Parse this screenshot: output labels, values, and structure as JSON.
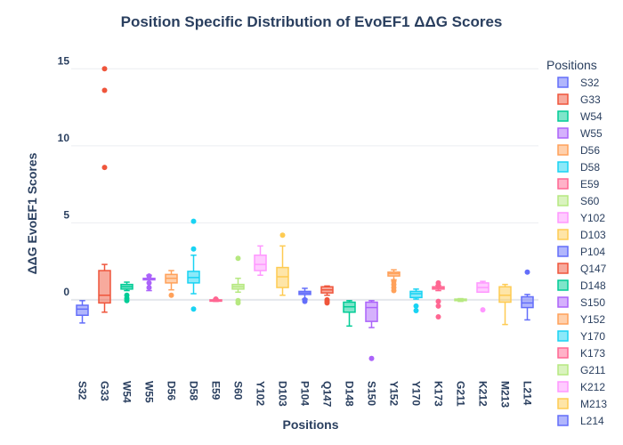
{
  "chart_data": {
    "type": "box",
    "title": "Position Specific Distribution of EvoEF1 ΔΔG Scores",
    "xlabel": "Positions",
    "ylabel": "ΔΔG EvoEF1 Scores",
    "ylim": [
      -4.8,
      16
    ],
    "yticks": [
      0,
      5,
      10,
      15
    ],
    "legend_title": "Positions",
    "legend_placement": "right",
    "series": [
      {
        "name": "S32",
        "color": "#636efa",
        "min": -1.5,
        "q1": -1.0,
        "median": -0.6,
        "q3": -0.35,
        "max": -0.05,
        "outliers": []
      },
      {
        "name": "G33",
        "color": "#ef553b",
        "min": -0.8,
        "q1": -0.2,
        "median": 0.3,
        "q3": 1.9,
        "max": 2.3,
        "outliers": [
          8.6,
          13.6,
          15.0
        ]
      },
      {
        "name": "W54",
        "color": "#00cc96",
        "min": 0.6,
        "q1": 0.7,
        "median": 0.85,
        "q3": 1.0,
        "max": 1.15,
        "outliers": [
          0.3,
          0.1,
          -0.05
        ]
      },
      {
        "name": "W55",
        "color": "#ab63fa",
        "min": 0.6,
        "q1": 1.3,
        "median": 1.35,
        "q3": 1.4,
        "max": 1.6,
        "outliers": [
          1.55,
          1.1,
          0.8
        ]
      },
      {
        "name": "D56",
        "color": "#ffa15a",
        "min": 0.65,
        "q1": 1.1,
        "median": 1.4,
        "q3": 1.65,
        "max": 1.9,
        "outliers": [
          0.3
        ]
      },
      {
        "name": "D58",
        "color": "#19d3f3",
        "min": 0.4,
        "q1": 1.1,
        "median": 1.45,
        "q3": 1.85,
        "max": 2.9,
        "outliers": [
          5.1,
          3.3,
          -0.6
        ]
      },
      {
        "name": "E59",
        "color": "#ff6692",
        "min": -0.1,
        "q1": -0.05,
        "median": -0.02,
        "q3": 0.0,
        "max": 0.05,
        "outliers": [
          0.05
        ]
      },
      {
        "name": "S60",
        "color": "#b6e880",
        "min": 0.5,
        "q1": 0.7,
        "median": 0.85,
        "q3": 1.0,
        "max": 1.4,
        "outliers": [
          2.7,
          -0.05,
          -0.2
        ]
      },
      {
        "name": "Y102",
        "color": "#ff97ff",
        "min": 1.6,
        "q1": 1.9,
        "median": 2.3,
        "q3": 2.9,
        "max": 3.5,
        "outliers": []
      },
      {
        "name": "D103",
        "color": "#fecb52",
        "min": 0.3,
        "q1": 0.8,
        "median": 1.5,
        "q3": 2.1,
        "max": 3.5,
        "outliers": [
          4.2
        ]
      },
      {
        "name": "P104",
        "color": "#636efa",
        "min": 0.05,
        "q1": 0.35,
        "median": 0.45,
        "q3": 0.55,
        "max": 0.75,
        "outliers": [
          0.0,
          -0.1
        ]
      },
      {
        "name": "Q147",
        "color": "#ef553b",
        "min": 0.3,
        "q1": 0.45,
        "median": 0.65,
        "q3": 0.85,
        "max": 0.9,
        "outliers": [
          0.0,
          -0.1,
          -0.2
        ]
      },
      {
        "name": "D148",
        "color": "#00cc96",
        "min": -1.7,
        "q1": -0.8,
        "median": -0.45,
        "q3": -0.15,
        "max": -0.05,
        "outliers": []
      },
      {
        "name": "S150",
        "color": "#ab63fa",
        "min": -1.8,
        "q1": -1.4,
        "median": -0.5,
        "q3": -0.15,
        "max": -0.05,
        "outliers": [
          -3.8
        ]
      },
      {
        "name": "Y152",
        "color": "#ffa15a",
        "min": 1.3,
        "q1": 1.55,
        "median": 1.7,
        "q3": 1.8,
        "max": 1.95,
        "outliers": [
          1.2,
          1.0,
          0.8,
          0.6
        ]
      },
      {
        "name": "Y170",
        "color": "#19d3f3",
        "min": 0.05,
        "q1": 0.15,
        "median": 0.4,
        "q3": 0.55,
        "max": 0.7,
        "outliers": [
          -0.4,
          -0.7
        ]
      },
      {
        "name": "K173",
        "color": "#ff6692",
        "min": 0.6,
        "q1": 0.7,
        "median": 0.8,
        "q3": 0.85,
        "max": 0.95,
        "outliers": [
          1.1,
          0.9,
          -0.1,
          -0.4,
          -1.1
        ]
      },
      {
        "name": "G211",
        "color": "#b6e880",
        "min": -0.1,
        "q1": -0.05,
        "median": 0.0,
        "q3": 0.05,
        "max": 0.08,
        "outliers": []
      },
      {
        "name": "K212",
        "color": "#ff97ff",
        "min": 0.5,
        "q1": 0.5,
        "median": 0.8,
        "q3": 1.1,
        "max": 1.2,
        "outliers": [
          -0.65
        ]
      },
      {
        "name": "M213",
        "color": "#fecb52",
        "min": -1.6,
        "q1": -0.15,
        "median": 0.3,
        "q3": 0.85,
        "max": 1.0,
        "outliers": []
      },
      {
        "name": "L214",
        "color": "#636efa",
        "min": -1.3,
        "q1": -0.5,
        "median": -0.2,
        "q3": 0.2,
        "max": 0.35,
        "outliers": [
          1.8
        ]
      }
    ]
  }
}
